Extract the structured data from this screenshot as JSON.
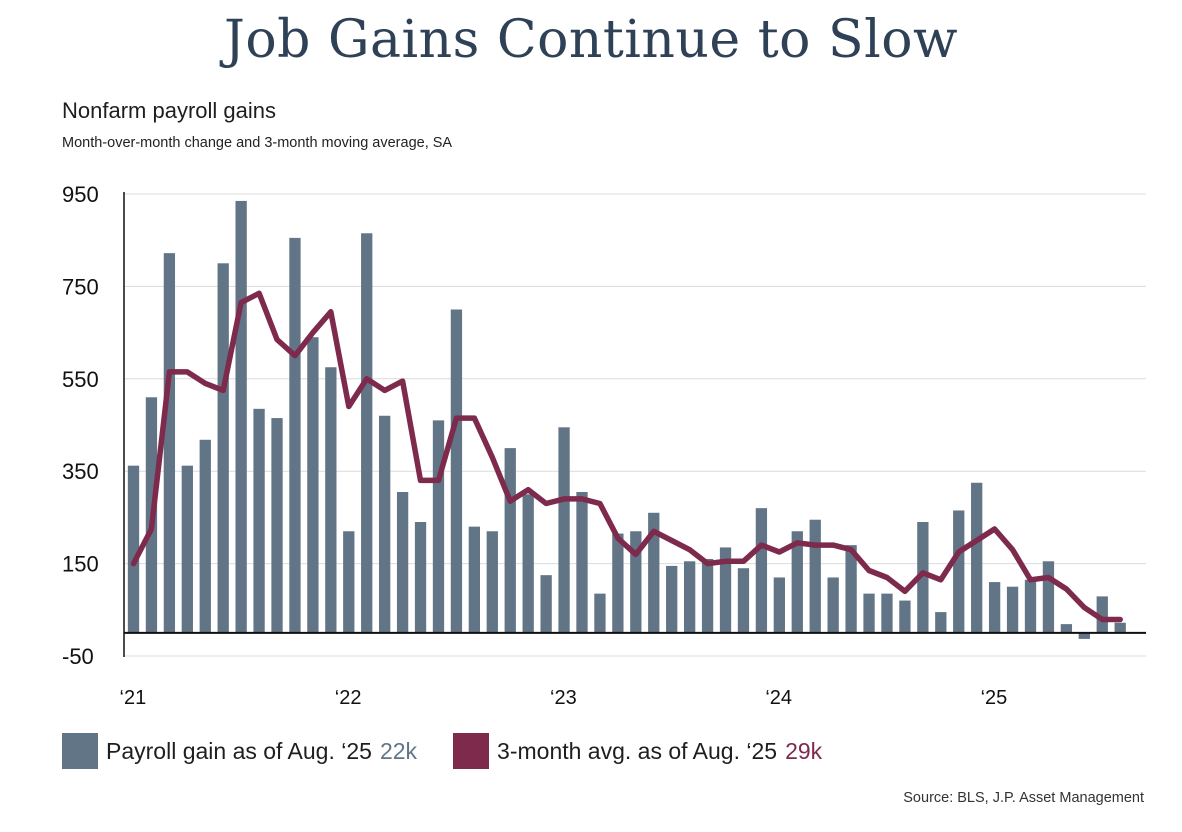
{
  "title": "Job Gains Continue to Slow",
  "subtitle": "Nonfarm payroll gains",
  "subsubtitle": "Month-over-month change and 3-month moving average, SA",
  "source": "Source: BLS, J.P. Asset Management",
  "colors": {
    "bar": "#627586",
    "line": "#7e2a4d",
    "grid": "#dcdcdc",
    "axis": "#111111",
    "title": "#2e4157"
  },
  "legend": {
    "bars_label": "Payroll gain as of Aug. ‘25",
    "bars_value": "22k",
    "line_label": "3-month avg. as of Aug. ‘25",
    "line_value": "29k"
  },
  "chart_data": {
    "type": "bar",
    "ylim": [
      -50,
      950
    ],
    "yticks": [
      950,
      750,
      550,
      350,
      150,
      -50
    ],
    "grid": true,
    "x_ticks": [
      {
        "label": "‘21",
        "index": 0
      },
      {
        "label": "‘22",
        "index": 12
      },
      {
        "label": "‘23",
        "index": 24
      },
      {
        "label": "‘24",
        "index": 36
      },
      {
        "label": "‘25",
        "index": 48
      }
    ],
    "series": [
      {
        "name": "Payroll gain as of Aug. ‘25",
        "type": "bar",
        "values": [
          362,
          510,
          822,
          362,
          418,
          800,
          935,
          485,
          465,
          855,
          640,
          575,
          220,
          865,
          470,
          305,
          240,
          460,
          700,
          230,
          220,
          400,
          300,
          125,
          445,
          305,
          85,
          215,
          220,
          260,
          145,
          155,
          160,
          185,
          140,
          270,
          120,
          220,
          245,
          120,
          190,
          85,
          85,
          70,
          240,
          45,
          265,
          325,
          110,
          100,
          115,
          155,
          19,
          -13,
          79,
          22
        ]
      },
      {
        "name": "3-month avg. as of Aug. ‘25",
        "type": "line",
        "values": [
          150,
          225,
          565,
          565,
          540,
          525,
          715,
          735,
          635,
          600,
          650,
          695,
          490,
          550,
          525,
          545,
          330,
          330,
          465,
          465,
          380,
          285,
          310,
          280,
          290,
          290,
          280,
          205,
          170,
          220,
          200,
          180,
          150,
          155,
          155,
          190,
          175,
          195,
          190,
          190,
          180,
          135,
          120,
          90,
          130,
          115,
          175,
          200,
          225,
          180,
          115,
          120,
          95,
          55,
          29,
          29
        ]
      }
    ]
  }
}
